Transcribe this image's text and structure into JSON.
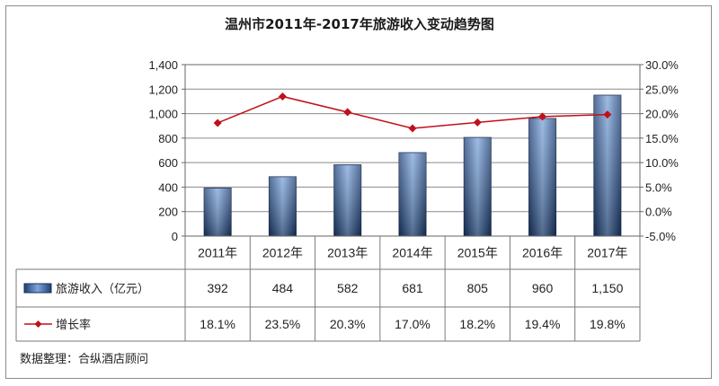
{
  "chart_data": {
    "type": "bar+line",
    "title": "温州市2011年-2017年旅游收入变动趋势图",
    "categories": [
      "2011年",
      "2012年",
      "2013年",
      "2014年",
      "2015年",
      "2016年",
      "2017年"
    ],
    "series": [
      {
        "name": "旅游收入（亿元）",
        "type": "bar",
        "axis": "left",
        "values": [
          392,
          484,
          582,
          681,
          805,
          960,
          1150
        ],
        "labels": [
          "392",
          "484",
          "582",
          "681",
          "805",
          "960",
          "1,150"
        ],
        "color": "#3f6fb0"
      },
      {
        "name": "增长率",
        "type": "line",
        "axis": "right",
        "values": [
          18.1,
          23.5,
          20.3,
          17.0,
          18.2,
          19.4,
          19.8
        ],
        "labels": [
          "18.1%",
          "23.5%",
          "20.3%",
          "17.0%",
          "18.2%",
          "19.4%",
          "19.8%"
        ],
        "color": "#c0101a"
      }
    ],
    "y_left": {
      "range": [
        0,
        1400
      ],
      "ticks": [
        0,
        200,
        400,
        600,
        800,
        1000,
        1200,
        1400
      ],
      "tick_labels": [
        "0",
        "200",
        "400",
        "600",
        "800",
        "1,000",
        "1,200",
        "1,400"
      ]
    },
    "y_right": {
      "range": [
        -5,
        30
      ],
      "ticks": [
        -5,
        0,
        5,
        10,
        15,
        20,
        25,
        30
      ],
      "tick_labels": [
        "-5.0%",
        "0.0%",
        "5.0%",
        "10.0%",
        "15.0%",
        "20.0%",
        "25.0%",
        "30.0%"
      ]
    },
    "grid": true,
    "legend": "data-table"
  },
  "source_note": "数据整理：合纵酒店顾问"
}
